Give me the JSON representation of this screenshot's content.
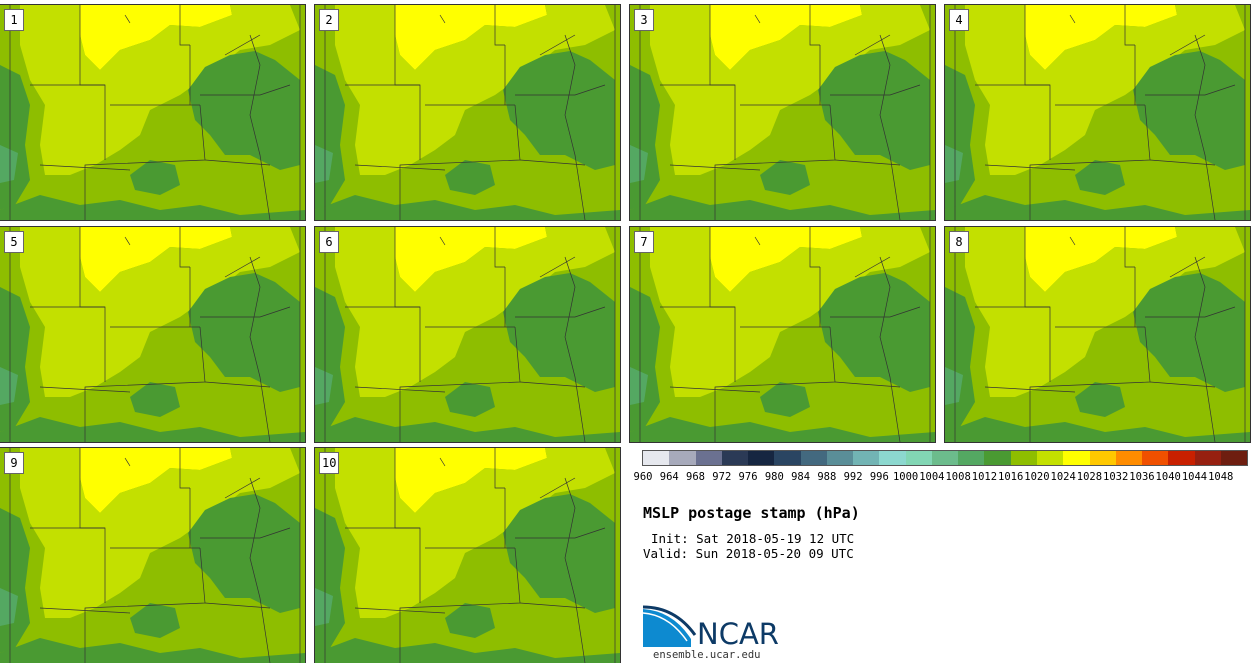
{
  "panels": [
    {
      "label": "1"
    },
    {
      "label": "2"
    },
    {
      "label": "3"
    },
    {
      "label": "4"
    },
    {
      "label": "5"
    },
    {
      "label": "6"
    },
    {
      "label": "7"
    },
    {
      "label": "8"
    },
    {
      "label": "9"
    },
    {
      "label": "10"
    }
  ],
  "colorbar": {
    "colors": [
      "#e6e8ee",
      "#a7aabb",
      "#6b7191",
      "#2b3a56",
      "#162641",
      "#2a4562",
      "#43697f",
      "#5a8e98",
      "#72b4b4",
      "#8cd8cf",
      "#82d6b4",
      "#6cbc8c",
      "#54a862",
      "#4a9a32",
      "#8ebe00",
      "#c3e000",
      "#ffff00",
      "#ffc800",
      "#ff8c00",
      "#f05000",
      "#c82000",
      "#962010",
      "#6e1e10"
    ],
    "labels": [
      "960",
      "964",
      "968",
      "972",
      "976",
      "980",
      "984",
      "988",
      "992",
      "996",
      "1000",
      "1004",
      "1008",
      "1012",
      "1016",
      "1020",
      "1024",
      "1028",
      "1032",
      "1036",
      "1040",
      "1044",
      "1048"
    ]
  },
  "title": "MSLP postage stamp (hPa)",
  "init": "Init: Sat 2018-05-19 12 UTC",
  "valid": "Valid: Sun 2018-05-20 09 UTC",
  "logo_text": "NCAR",
  "site": "ensemble.ucar.edu",
  "colors": {
    "yellow": "#ffff00",
    "light_green": "#c3e000",
    "mid_green": "#8ebe00",
    "dark_green": "#4a9a32",
    "teal_green": "#54a862",
    "logo_blue": "#0d3a66"
  }
}
